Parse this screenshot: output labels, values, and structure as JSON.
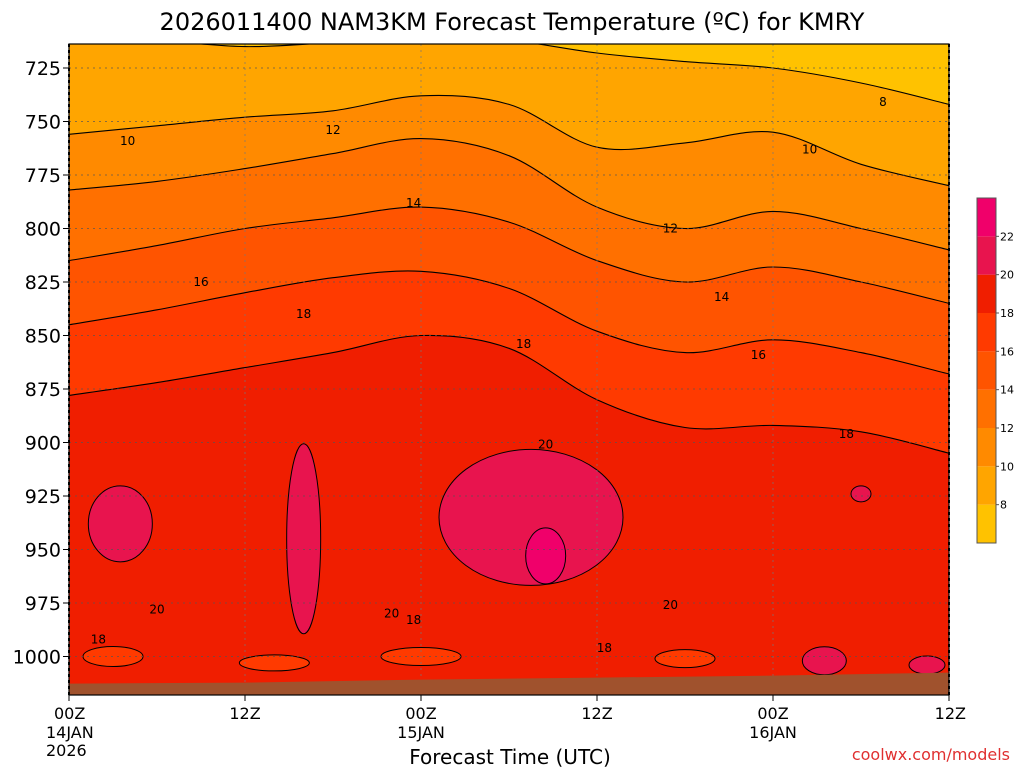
{
  "chart_data": {
    "type": "heatmap",
    "title": "2026011400 NAM3KM Forecast Temperature (ºC) for KMRY",
    "xlabel": "Forecast Time (UTC)",
    "ylabel": "",
    "watermark": "coolwx.com/models",
    "x_hours": [
      0,
      12,
      24,
      36,
      48,
      60
    ],
    "x_tick_labels": [
      "00Z",
      "12Z",
      "00Z",
      "12Z",
      "00Z",
      "12Z"
    ],
    "x_date_labels": [
      {
        "hour": 0,
        "lines": [
          "14JAN",
          "2026"
        ]
      },
      {
        "hour": 24,
        "lines": [
          "15JAN"
        ]
      },
      {
        "hour": 48,
        "lines": [
          "16JAN"
        ]
      }
    ],
    "xlim": [
      0,
      60
    ],
    "ylim_hpa": [
      1016,
      710
    ],
    "y_ticks": [
      725,
      750,
      775,
      800,
      825,
      850,
      875,
      900,
      925,
      950,
      975,
      1000
    ],
    "y_tick_labels": [
      "725",
      "750",
      "775",
      "800",
      "825",
      "850",
      "875",
      "900",
      "925",
      "950",
      "975",
      "1000"
    ],
    "surface_pressure_hpa": 1008,
    "levels": [
      8,
      10,
      12,
      14,
      16,
      18,
      20,
      22
    ],
    "colorbar_labels": [
      "8",
      "10",
      "12",
      "14",
      "16",
      "18",
      "20",
      "22"
    ],
    "colors": {
      "below_8": "#FFC200",
      "8_10": "#FFA500",
      "10_12": "#FF8A00",
      "12_14": "#FF7000",
      "14_16": "#FF5400",
      "16_18": "#FF3A00",
      "18_20": "#F01E00",
      "20_22": "#E8144E",
      "22_plus": "#F0006A",
      "terrain": "#A0522D"
    },
    "profile_hours": [
      0,
      6,
      12,
      18,
      24,
      30,
      36,
      42,
      48,
      54,
      60
    ],
    "isotherm_pressures": [
      {
        "t": 8,
        "hpa": [
          710,
          712,
          715,
          713,
          710,
          712,
          718,
          722,
          725,
          732,
          742
        ]
      },
      {
        "t": 10,
        "hpa": [
          756,
          752,
          748,
          745,
          738,
          742,
          762,
          760,
          755,
          770,
          780
        ]
      },
      {
        "t": 12,
        "hpa": [
          782,
          778,
          772,
          765,
          758,
          766,
          790,
          800,
          792,
          800,
          810
        ]
      },
      {
        "t": 14,
        "hpa": [
          815,
          808,
          800,
          795,
          790,
          797,
          815,
          825,
          818,
          825,
          835
        ]
      },
      {
        "t": 16,
        "hpa": [
          845,
          838,
          830,
          823,
          820,
          828,
          848,
          858,
          852,
          858,
          868
        ]
      },
      {
        "t": 18,
        "hpa": [
          878,
          872,
          865,
          858,
          850,
          856,
          880,
          893,
          892,
          895,
          905
        ]
      }
    ],
    "contour_labels": [
      {
        "text": "8",
        "hour": 55.5,
        "hpa": 741
      },
      {
        "text": "10",
        "hour": 4,
        "hpa": 759
      },
      {
        "text": "10",
        "hour": 50.5,
        "hpa": 763
      },
      {
        "text": "12",
        "hour": 18,
        "hpa": 754
      },
      {
        "text": "12",
        "hour": 41,
        "hpa": 800
      },
      {
        "text": "14",
        "hour": 23.5,
        "hpa": 788
      },
      {
        "text": "14",
        "hour": 44.5,
        "hpa": 832
      },
      {
        "text": "16",
        "hour": 9,
        "hpa": 825
      },
      {
        "text": "16",
        "hour": 47,
        "hpa": 859
      },
      {
        "text": "18",
        "hour": 16,
        "hpa": 840
      },
      {
        "text": "18",
        "hour": 31,
        "hpa": 854
      },
      {
        "text": "18",
        "hour": 53,
        "hpa": 896
      },
      {
        "text": "18",
        "hour": 2,
        "hpa": 992
      },
      {
        "text": "18",
        "hour": 23.5,
        "hpa": 983
      },
      {
        "text": "18",
        "hour": 36.5,
        "hpa": 996
      },
      {
        "text": "20",
        "hour": 32.5,
        "hpa": 901
      },
      {
        "text": "20",
        "hour": 6,
        "hpa": 978
      },
      {
        "text": "20",
        "hour": 22,
        "hpa": 980
      },
      {
        "text": "20",
        "hour": 41,
        "hpa": 976
      }
    ]
  }
}
